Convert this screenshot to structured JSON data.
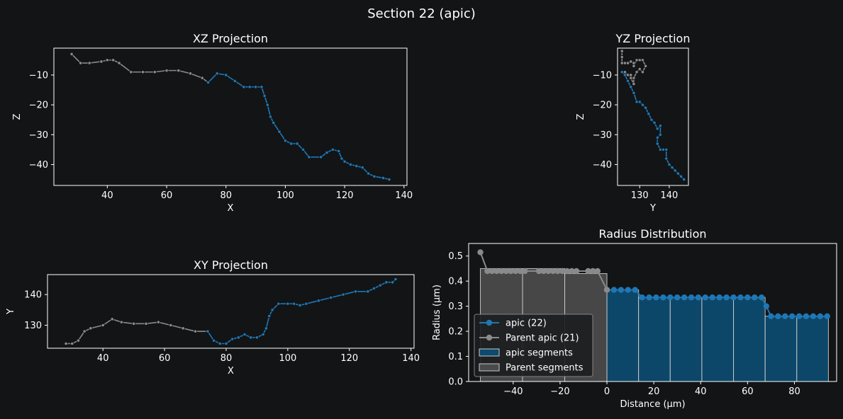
{
  "figure_title": "Section 22 (apic)",
  "colors": {
    "background": "#131416",
    "current": "#1f77b4",
    "current_fill": "#0c4a6e",
    "parent": "#8a8a8a",
    "parent_fill": "#4a4a4a",
    "axis": "#ffffff"
  },
  "chart_data": [
    {
      "id": "xz",
      "type": "line",
      "title": "XZ Projection",
      "xlabel": "X",
      "ylabel": "Z",
      "xlim": [
        22,
        141
      ],
      "ylim": [
        -47,
        -1
      ],
      "xticks": [
        40,
        60,
        80,
        100,
        120,
        140
      ],
      "yticks": [
        -10,
        -20,
        -30,
        -40
      ],
      "series": [
        {
          "role": "parent",
          "x": [
            28,
            31,
            34,
            38,
            40,
            42,
            44,
            48,
            52,
            56,
            60,
            64,
            68,
            72,
            74
          ],
          "y": [
            -3,
            -6,
            -6,
            -5.5,
            -5,
            -5,
            -6,
            -9,
            -9,
            -9,
            -8.5,
            -8.5,
            -9.5,
            -11,
            -12.5
          ]
        },
        {
          "role": "current",
          "x": [
            74,
            77,
            80,
            83,
            86,
            88,
            90,
            92,
            93,
            94,
            95,
            96,
            98,
            100,
            102,
            104,
            106,
            108,
            112,
            114,
            116,
            118,
            119,
            120,
            122,
            124,
            126,
            128,
            130,
            133,
            135
          ],
          "y": [
            -12.5,
            -9.5,
            -10,
            -12,
            -14,
            -14,
            -14,
            -14,
            -17,
            -20,
            -24,
            -26,
            -29,
            -32,
            -33,
            -33,
            -35,
            -37.5,
            -37.5,
            -36,
            -35,
            -35.5,
            -38,
            -39,
            -40,
            -40.5,
            -41,
            -43,
            -44,
            -44.5,
            -45
          ]
        }
      ]
    },
    {
      "id": "yz",
      "type": "line",
      "title": "YZ Projection",
      "xlabel": "Y",
      "ylabel": "Z",
      "xlim": [
        122.5,
        146.5
      ],
      "ylim": [
        -47,
        -1
      ],
      "xticks": [
        130,
        140
      ],
      "yticks": [
        -10,
        -20,
        -30,
        -40
      ],
      "series": [
        {
          "role": "parent",
          "x": [
            124,
            124,
            124,
            125,
            126,
            127,
            128,
            128,
            129,
            130,
            131,
            132,
            131,
            130,
            129,
            128,
            128,
            127,
            127,
            126,
            125
          ],
          "y": [
            -2,
            -4,
            -6,
            -6,
            -6,
            -5.5,
            -6,
            -7,
            -5,
            -5,
            -5,
            -7,
            -9,
            -8,
            -9,
            -11,
            -13,
            -11,
            -10,
            -10,
            -9
          ]
        },
        {
          "role": "current",
          "x": [
            124,
            125,
            126,
            127,
            128,
            129,
            130,
            131,
            132,
            133,
            134,
            135,
            136,
            137,
            137,
            136,
            136,
            137,
            138,
            139,
            139,
            140,
            141,
            142,
            143,
            144,
            145
          ],
          "y": [
            -9,
            -10,
            -12,
            -14,
            -16,
            -19,
            -19,
            -20,
            -21,
            -23,
            -25,
            -26,
            -28,
            -27,
            -30,
            -31,
            -33,
            -35,
            -35,
            -35,
            -38,
            -40,
            -41,
            -42,
            -43,
            -44,
            -45
          ]
        }
      ]
    },
    {
      "id": "xy",
      "type": "line",
      "title": "XY Projection",
      "xlabel": "X",
      "ylabel": "Y",
      "xlim": [
        22,
        141
      ],
      "ylim": [
        122.5,
        146.5
      ],
      "xticks": [
        20,
        40,
        60,
        80,
        100,
        120,
        140
      ],
      "yticks": [
        130,
        140
      ],
      "series": [
        {
          "role": "parent",
          "x": [
            28,
            30,
            32,
            34,
            36,
            40,
            43,
            46,
            50,
            54,
            58,
            62,
            66,
            70,
            74
          ],
          "y": [
            124,
            124,
            125,
            128,
            129,
            130,
            132,
            131,
            130.5,
            130.5,
            131,
            130,
            129,
            128,
            128
          ]
        },
        {
          "role": "current",
          "x": [
            74,
            76,
            78,
            80,
            82,
            84,
            86,
            88,
            90,
            92,
            93,
            94,
            95,
            97,
            100,
            102,
            104,
            106,
            110,
            114,
            118,
            122,
            126,
            128,
            130,
            132,
            134,
            135
          ],
          "y": [
            128,
            125,
            124,
            124,
            125.5,
            126,
            127,
            126,
            126,
            127,
            129,
            133,
            135,
            137,
            137,
            137,
            136.5,
            137,
            138,
            139,
            140,
            141,
            141,
            142,
            143,
            144,
            144,
            145
          ]
        }
      ]
    },
    {
      "id": "radius",
      "type": "bar",
      "title": "Radius Distribution",
      "xlabel": "Distance (µm)",
      "ylabel": "Radius (µm)",
      "xlim": [
        -59,
        98
      ],
      "ylim": [
        0,
        0.55
      ],
      "xticks": [
        -40,
        -20,
        0,
        20,
        40,
        60,
        80
      ],
      "yticks": [
        0.0,
        0.1,
        0.2,
        0.3,
        0.4,
        0.5
      ],
      "bars": [
        {
          "role": "parent",
          "x0": -54,
          "x1": -36,
          "value": 0.45
        },
        {
          "role": "parent",
          "x0": -36,
          "x1": -18,
          "value": 0.45
        },
        {
          "role": "parent",
          "x0": -18,
          "x1": 0,
          "value": 0.43
        },
        {
          "role": "current",
          "x0": 0,
          "x1": 13.5,
          "value": 0.365
        },
        {
          "role": "current",
          "x0": 13.5,
          "x1": 27,
          "value": 0.335
        },
        {
          "role": "current",
          "x0": 27,
          "x1": 40.5,
          "value": 0.335
        },
        {
          "role": "current",
          "x0": 40.5,
          "x1": 54,
          "value": 0.335
        },
        {
          "role": "current",
          "x0": 54,
          "x1": 67.5,
          "value": 0.335
        },
        {
          "role": "current",
          "x0": 67.5,
          "x1": 81,
          "value": 0.26
        },
        {
          "role": "current",
          "x0": 81,
          "x1": 94.5,
          "value": 0.26
        }
      ],
      "series": [
        {
          "role": "current",
          "name": "apic (22)",
          "x": [
            0,
            3,
            6,
            9,
            12,
            15,
            18,
            21,
            24,
            27,
            30,
            33,
            36,
            39,
            42,
            45,
            48,
            51,
            54,
            57,
            60,
            63,
            66,
            68,
            70,
            73,
            76,
            79,
            82,
            85,
            88,
            91,
            94
          ],
          "y": [
            0.365,
            0.365,
            0.365,
            0.365,
            0.365,
            0.335,
            0.335,
            0.335,
            0.335,
            0.335,
            0.335,
            0.335,
            0.335,
            0.335,
            0.335,
            0.335,
            0.335,
            0.335,
            0.335,
            0.335,
            0.335,
            0.335,
            0.335,
            0.3,
            0.26,
            0.26,
            0.26,
            0.26,
            0.26,
            0.26,
            0.26,
            0.26,
            0.26
          ]
        },
        {
          "role": "parent",
          "name": "Parent apic (21)",
          "x": [
            -54,
            -51,
            -49,
            -47,
            -45,
            -43,
            -41,
            -39,
            -37,
            -35,
            -29,
            -27,
            -25,
            -23,
            -21,
            -19,
            -17,
            -15,
            -13,
            -8,
            -6,
            -4,
            0
          ],
          "y": [
            0.515,
            0.44,
            0.44,
            0.44,
            0.44,
            0.44,
            0.44,
            0.44,
            0.44,
            0.44,
            0.44,
            0.44,
            0.44,
            0.44,
            0.44,
            0.44,
            0.44,
            0.44,
            0.44,
            0.44,
            0.44,
            0.44,
            0.365
          ]
        }
      ],
      "legend": {
        "placement": "lower-left",
        "entries": [
          "apic (22)",
          "Parent apic (21)",
          "apic segments",
          "Parent segments"
        ]
      }
    }
  ]
}
